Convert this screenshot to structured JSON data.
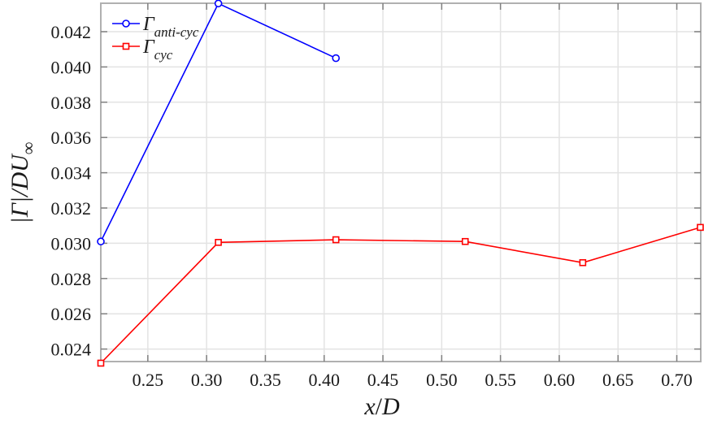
{
  "chart_data": {
    "type": "line",
    "title": "",
    "xlabel": "x/D",
    "ylabel": "|Γ|/DU∞",
    "xlim": [
      0.21,
      0.72
    ],
    "ylim": [
      0.0232,
      0.0436
    ],
    "grid": true,
    "legend_position": "upper left",
    "x_ticks": [
      "0.25",
      "0.30",
      "0.35",
      "0.40",
      "0.45",
      "0.50",
      "0.55",
      "0.60",
      "0.65",
      "0.70"
    ],
    "y_ticks": [
      "0.024",
      "0.026",
      "0.028",
      "0.030",
      "0.032",
      "0.034",
      "0.036",
      "0.038",
      "0.040",
      "0.042"
    ],
    "series": [
      {
        "name": "Γ_anti-cyc",
        "legend_main": "Γ",
        "legend_sub": "anti-cyc",
        "color": "#0000ff",
        "marker": "circle",
        "x": [
          0.21,
          0.31,
          0.41
        ],
        "values": [
          0.0301,
          0.0436,
          0.0405
        ]
      },
      {
        "name": "Γ_cyc",
        "legend_main": "Γ",
        "legend_sub": "cyc",
        "color": "#ff0000",
        "marker": "square",
        "x": [
          0.21,
          0.31,
          0.41,
          0.52,
          0.62,
          0.72
        ],
        "values": [
          0.0232,
          0.03005,
          0.0302,
          0.0301,
          0.0289,
          0.0309
        ]
      }
    ]
  },
  "axes": {
    "xlabel_main": "x",
    "xlabel_slash": "/",
    "xlabel_D": "D",
    "ylabel_text": "|Γ|/DU",
    "ylabel_sub": "∞"
  }
}
